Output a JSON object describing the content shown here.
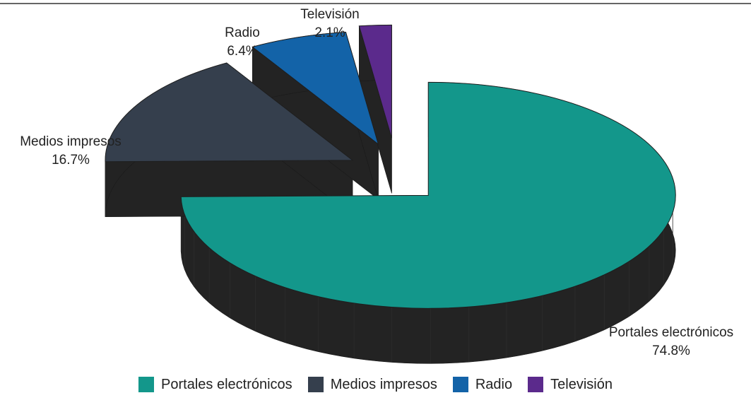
{
  "chart_data": {
    "type": "pie",
    "categories": [
      "Portales electrónicos",
      "Medios impresos",
      "Radio",
      "Televisión"
    ],
    "values": [
      74.8,
      16.7,
      6.4,
      2.1
    ],
    "value_labels": [
      "74.8%",
      "16.7%",
      "6.4%",
      "2.1%"
    ],
    "colors": [
      "#13978b",
      "#353f4d",
      "#1363a8",
      "#5b2a8c"
    ],
    "side_color": "#232323",
    "style": "3d-exploded",
    "legend_position": "bottom"
  }
}
